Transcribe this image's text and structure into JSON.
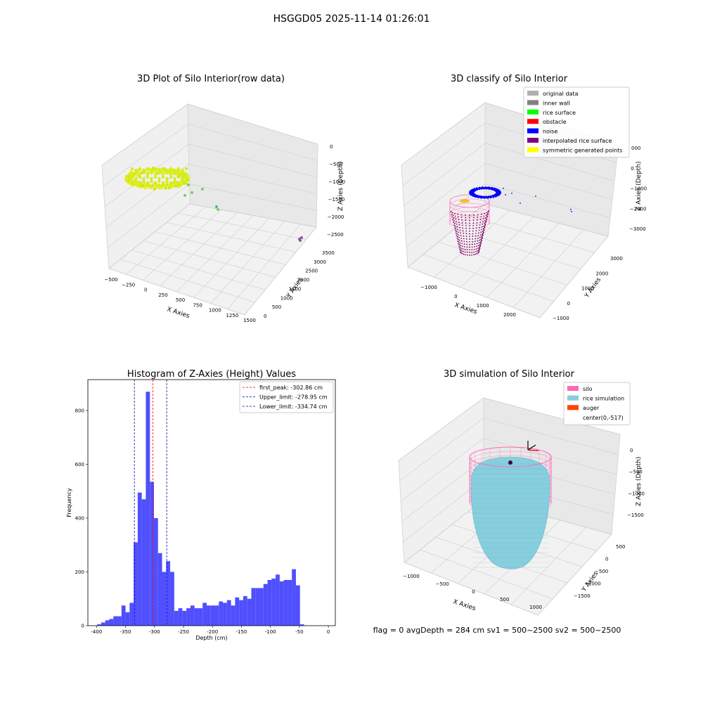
{
  "figure": {
    "suptitle": "HSGGD05 2025-11-14 01:26:01",
    "footer": "flag = 0     avgDepth = 284 cm  sv1 = 500~2500  sv2 = 500~2500"
  },
  "colors": {
    "raw_yellow": "#e8f016",
    "raw_green": "#6fcf62",
    "raw_teal": "#52a8a0",
    "raw_purple": "#8a5a9e",
    "noise": "#0000ff",
    "silo": "#ff69b4",
    "rice": "#87cede",
    "hist_bar": "#4f4ffd",
    "peak_line": "#ff0000",
    "limit_line": "#0000cc"
  },
  "chart_data": [
    {
      "type": "scatter",
      "title": "3D Plot of Silo Interior(row data)",
      "xlabel": "X Axies",
      "ylabel": "Y Axies",
      "zlabel": "Z Axies (Depth)",
      "x_ticks": [
        "−500",
        "−250",
        "0",
        "250",
        "500",
        "750",
        "1000",
        "1250",
        "1500"
      ],
      "y_ticks": [
        "0",
        "500",
        "1000",
        "1500",
        "2000",
        "2500",
        "3000",
        "3500"
      ],
      "z_ticks": [
        "0",
        "−500",
        "−1000",
        "−1500",
        "−2000",
        "−2500"
      ]
    },
    {
      "type": "scatter",
      "title": "3D classify of Silo Interior",
      "xlabel": "X Axies",
      "ylabel": "Y Axies",
      "zlabel": "Z Axies (Depth)",
      "x_ticks": [
        "−1000",
        "0",
        "1000",
        "2000"
      ],
      "y_ticks": [
        "−1000",
        "0",
        "1000",
        "2000",
        "3000"
      ],
      "z_ticks": [
        "000",
        "0",
        "−1000",
        "−2000",
        "−3000"
      ],
      "legend": [
        {
          "label": "original data",
          "color": "#b0b0b0"
        },
        {
          "label": "inner wall",
          "color": "#808080"
        },
        {
          "label": "rice surface",
          "color": "#00ff00"
        },
        {
          "label": "obstacle",
          "color": "#ff0000"
        },
        {
          "label": "noise",
          "color": "#0000ff"
        },
        {
          "label": "interpolated rice surface",
          "color": "#800080"
        },
        {
          "label": "symmetric generated points",
          "color": "#ffff00"
        }
      ]
    },
    {
      "type": "bar",
      "title": "Histogram of Z-Axies (Height) Values",
      "xlabel": "Depth (cm)",
      "ylabel": "Frequency",
      "xlim": [
        -415,
        12
      ],
      "ylim": [
        0,
        915
      ],
      "x_ticks": [
        -400,
        -350,
        -300,
        -250,
        -200,
        -150,
        -100,
        -50,
        0
      ],
      "y_ticks": [
        0,
        200,
        400,
        600,
        800
      ],
      "bin_width": 7,
      "bin_start": -399,
      "values": [
        5,
        12,
        20,
        25,
        35,
        35,
        75,
        50,
        85,
        310,
        495,
        470,
        870,
        535,
        400,
        270,
        200,
        240,
        200,
        55,
        65,
        55,
        65,
        75,
        65,
        65,
        85,
        75,
        75,
        75,
        90,
        85,
        95,
        75,
        105,
        95,
        110,
        100,
        140,
        140,
        140,
        155,
        170,
        175,
        190,
        165,
        170,
        170,
        210,
        150,
        5
      ],
      "lines": [
        {
          "label": "first_peak: -302.86 cm",
          "x": -302.86,
          "color": "#ff0000"
        },
        {
          "label": "Upper_limit: -278.95 cm",
          "x": -278.95,
          "color": "#0000cc"
        },
        {
          "label": "Lower_limit: -334.74 cm",
          "x": -334.74,
          "color": "#0000cc"
        }
      ],
      "legend_position": "top-right"
    },
    {
      "type": "scatter",
      "title": "3D simulation of Silo Interior",
      "xlabel": "X Axies",
      "ylabel": "Y Axies",
      "zlabel": "Z Axies (Depth)",
      "x_ticks": [
        "−1000",
        "−500",
        "0",
        "500",
        "1000"
      ],
      "y_ticks": [
        "−1500",
        "−1000",
        "−500",
        "0",
        "500"
      ],
      "z_ticks": [
        "0",
        "−500",
        "−1000",
        "−1500"
      ],
      "legend": [
        {
          "label": "silo",
          "color": "#ff69b4"
        },
        {
          "label": "rice simulation",
          "color": "#87cede"
        },
        {
          "label": "auger",
          "color": "#ff4500"
        },
        {
          "label": "center(0,-517)",
          "color": ""
        }
      ]
    }
  ]
}
